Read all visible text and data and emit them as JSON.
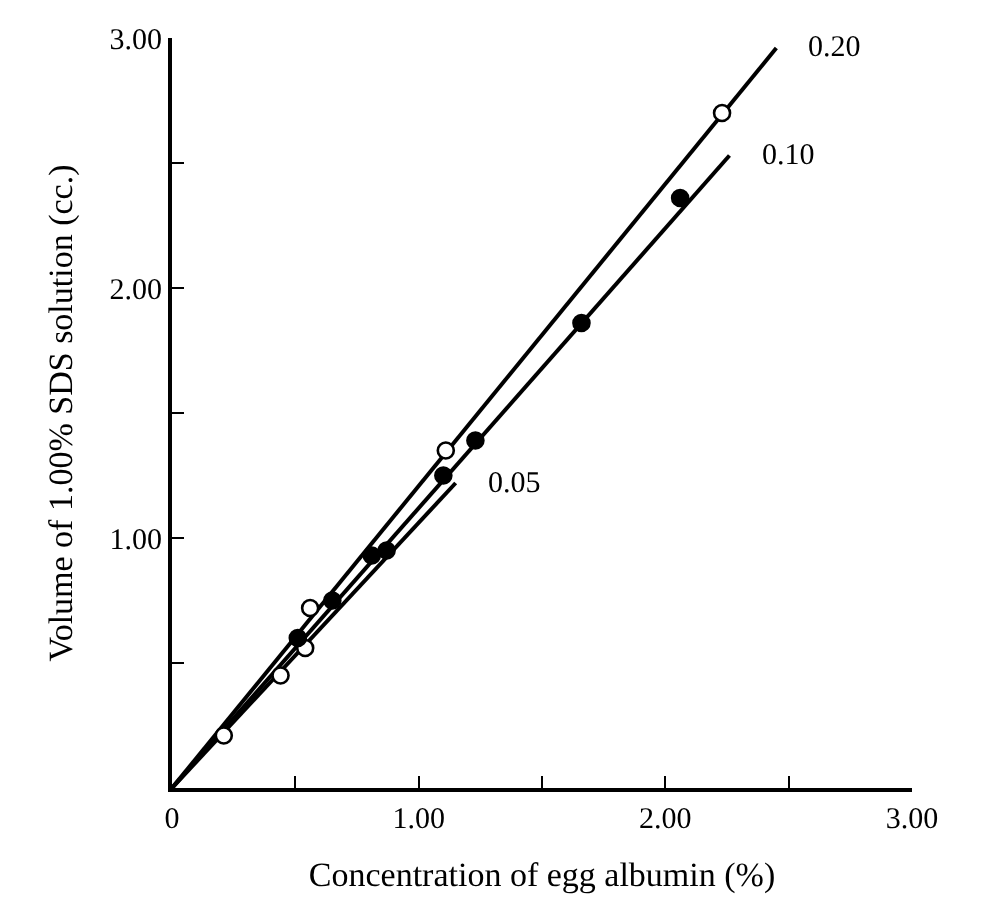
{
  "chart_data": {
    "type": "scatter",
    "xlabel": "Concentration of egg albumin (%)",
    "ylabel": "Volume of 1.00% SDS solution (cc.)",
    "xlim": [
      0,
      3
    ],
    "ylim": [
      0,
      3
    ],
    "xticks": [
      {
        "value": 0,
        "label": "0"
      },
      {
        "value": 0.5,
        "label": null
      },
      {
        "value": 1,
        "label": "1.00"
      },
      {
        "value": 1.5,
        "label": null
      },
      {
        "value": 2,
        "label": "2.00"
      },
      {
        "value": 2.5,
        "label": null
      },
      {
        "value": 3,
        "label": "3.00"
      }
    ],
    "yticks": [
      {
        "value": 0,
        "label": null
      },
      {
        "value": 0.5,
        "label": null
      },
      {
        "value": 1,
        "label": "1.00"
      },
      {
        "value": 1.5,
        "label": null
      },
      {
        "value": 2,
        "label": "2.00"
      },
      {
        "value": 2.5,
        "label": null
      },
      {
        "value": 3,
        "label": "3.00"
      }
    ],
    "grid": false,
    "legend": false,
    "series": [
      {
        "type": "line",
        "name": "0.20",
        "color": "#000000",
        "marker": "none",
        "x": [
          0,
          2.45
        ],
        "values": [
          0,
          2.96
        ]
      },
      {
        "type": "line",
        "name": "0.10",
        "color": "#000000",
        "marker": "none",
        "x": [
          0,
          2.26
        ],
        "values": [
          0,
          2.53
        ]
      },
      {
        "type": "line",
        "name": "0.05",
        "color": "#000000",
        "marker": "none",
        "x": [
          0,
          1.15
        ],
        "values": [
          0,
          1.22
        ]
      },
      {
        "color": "#ffffff",
        "marker": "circle",
        "x": [
          0.21,
          0.44,
          0.54,
          0.56,
          1.11,
          2.23
        ],
        "values": [
          0.21,
          0.45,
          0.56,
          0.72,
          1.35,
          2.7
        ]
      },
      {
        "color": "#000000",
        "marker": "circle",
        "x": [
          0.51,
          0.65,
          0.81,
          0.87,
          1.1,
          1.23,
          1.66,
          2.06
        ],
        "values": [
          0.6,
          0.75,
          0.93,
          0.95,
          1.25,
          1.39,
          1.86,
          2.36
        ]
      }
    ]
  }
}
